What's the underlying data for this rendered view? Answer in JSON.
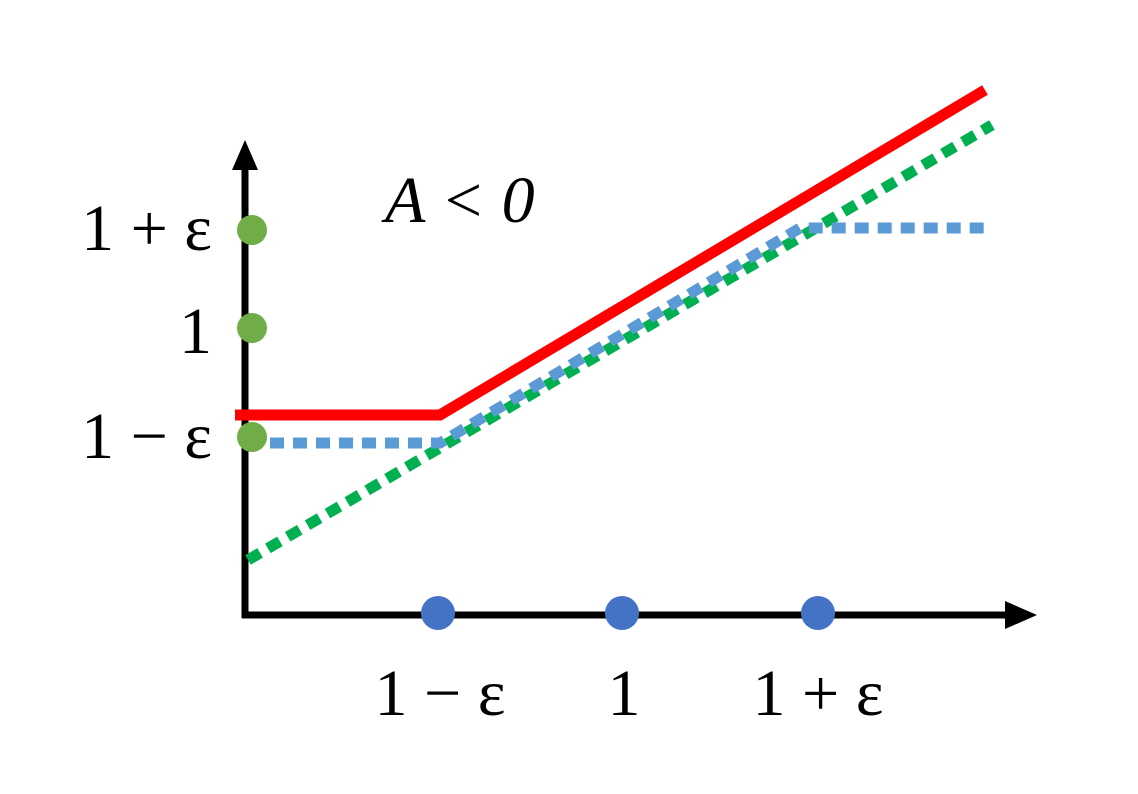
{
  "annotation": "A < 0",
  "y_tick_labels": [
    "1 + ε",
    "1",
    "1 − ε"
  ],
  "x_tick_labels": [
    "1 − ε",
    "1",
    "1 + ε"
  ],
  "colors": {
    "axis": "#000000",
    "red_line": "#ff0000",
    "blue_dotted": "#5b9bd5",
    "green_dotted": "#00b050",
    "y_markers": "#70ad47",
    "x_markers": "#4472c4"
  }
}
